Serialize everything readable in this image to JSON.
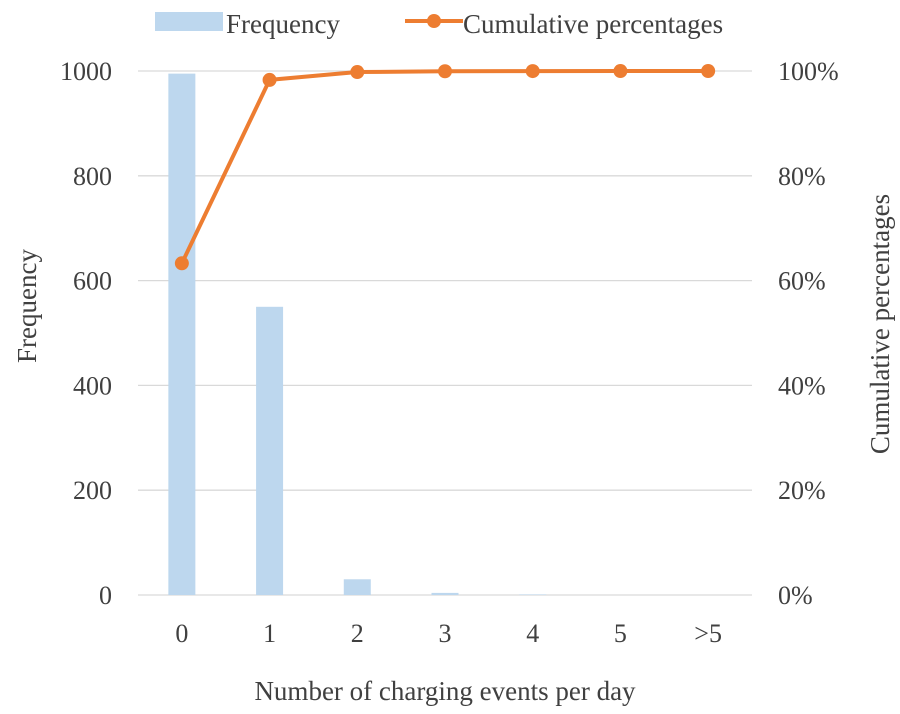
{
  "chart_data": {
    "type": "bar",
    "categories": [
      "0",
      "1",
      "2",
      "3",
      "4",
      "5",
      ">5"
    ],
    "xlabel": "Number of charging events per day",
    "ylabel": "Frequency",
    "y2label": "Cumulative percentages",
    "ylim": [
      0,
      1000
    ],
    "y2lim": [
      0,
      100
    ],
    "yticks": [
      "0",
      "200",
      "400",
      "600",
      "800",
      "1000"
    ],
    "y2ticks": [
      "0%",
      "20%",
      "40%",
      "60%",
      "80%",
      "100%"
    ],
    "grid": true,
    "legend_position": "top",
    "series": [
      {
        "name": "Frequency",
        "type": "bar",
        "axis": "left",
        "color": "#bdd7ee",
        "values": [
          995,
          550,
          30,
          4,
          1,
          0,
          0
        ]
      },
      {
        "name": "Cumulative percentages",
        "type": "line",
        "axis": "right",
        "color": "#ed7d31",
        "values": [
          63.3,
          98.3,
          99.8,
          99.95,
          99.98,
          99.99,
          100
        ]
      }
    ]
  }
}
